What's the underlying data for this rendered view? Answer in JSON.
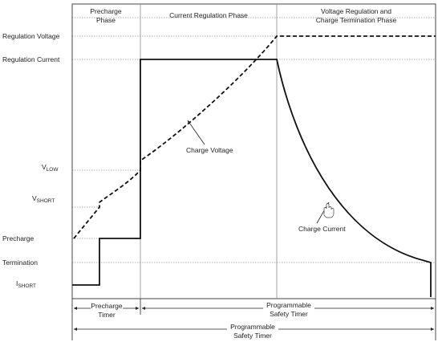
{
  "phases": [
    {
      "lines": [
        "Precharge",
        "Phase"
      ]
    },
    {
      "lines": [
        "Current Regulation Phase"
      ]
    },
    {
      "lines": [
        "Voltage Regulation and",
        "Charge Termination Phase"
      ]
    }
  ],
  "levels": [
    {
      "text": "Regulation Voltage"
    },
    {
      "text": "Regulation Current"
    },
    {
      "text": "V",
      "sub": "LOW"
    },
    {
      "text": "V",
      "sub": "SHORT"
    },
    {
      "text": "Precharge"
    },
    {
      "text": "Termination"
    },
    {
      "text": "I",
      "sub": "SHORT"
    }
  ],
  "curves": [
    "Charge Voltage",
    "Charge Current"
  ],
  "timers": [
    {
      "lines": [
        "Precharge",
        "Timer"
      ]
    },
    {
      "lines": [
        "Programmable",
        "Safety Timer"
      ]
    },
    {
      "lines": [
        "Programmable",
        "Safety Timer"
      ]
    }
  ]
}
